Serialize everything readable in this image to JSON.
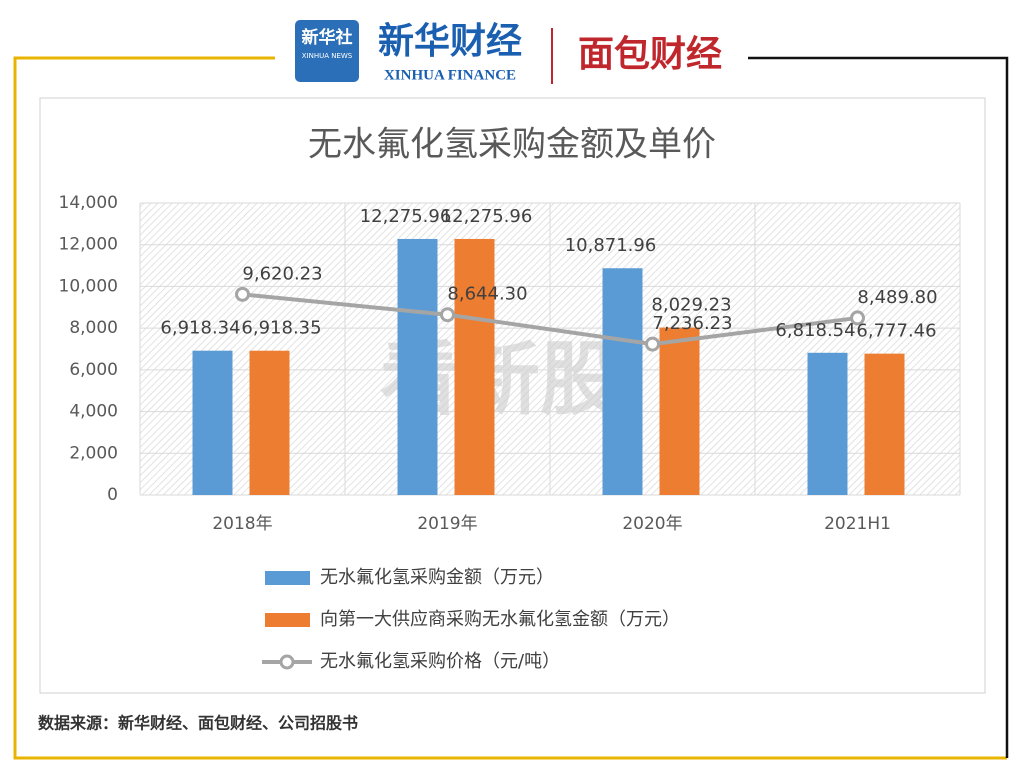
{
  "header": {
    "xinhua_logo": "新华社",
    "xinhua_logo_en": "XINHUA NEWS",
    "finance_logo": "新华财经",
    "finance_logo_en": "XINHUA FINANCE",
    "mianbao_logo": "面包财经"
  },
  "watermark": "看新股",
  "chart_data": {
    "type": "bar",
    "title": "无水氟化氢采购金额及单价",
    "categories": [
      "2018年",
      "2019年",
      "2020年",
      "2021H1"
    ],
    "series": [
      {
        "name": "无水氟化氢采购金额（万元）",
        "type": "bar",
        "color": "#5b9bd5",
        "values": [
          6918.34,
          12275.96,
          10871.96,
          6818.54
        ],
        "value_labels": [
          "6,918.34",
          "12,275.96",
          "10,871.96",
          "6,818.54"
        ]
      },
      {
        "name": "向第一大供应商采购无水氟化氢金额（万元）",
        "type": "bar",
        "color": "#ed7d31",
        "values": [
          6918.35,
          12275.96,
          8029.23,
          6777.46
        ],
        "value_labels": [
          "6,918.35",
          "12,275.96",
          "8,029.23",
          "6,777.46"
        ]
      },
      {
        "name": "无水氟化氢采购价格（元/吨）",
        "type": "line",
        "color": "#a5a5a5",
        "values": [
          9620.23,
          8644.3,
          7236.23,
          8489.8
        ],
        "value_labels": [
          "9,620.23",
          "8,644.30",
          "7,236.23",
          "8,489.80"
        ]
      }
    ],
    "ylim": [
      0,
      14000
    ],
    "yticks": [
      0,
      {
        "value": 2000,
        "label": "2,000"
      },
      {
        "value": 4000,
        "label": "4,000"
      },
      {
        "value": 6000,
        "label": "6,000"
      },
      {
        "value": 8000,
        "label": "8,000"
      },
      {
        "value": 10000,
        "label": "10,000"
      },
      {
        "value": 12000,
        "label": "12,000"
      },
      {
        "value": 14000,
        "label": "14,000"
      }
    ],
    "grid": true
  },
  "footer": {
    "source": "数据来源：新华财经、面包财经、公司招股书"
  }
}
